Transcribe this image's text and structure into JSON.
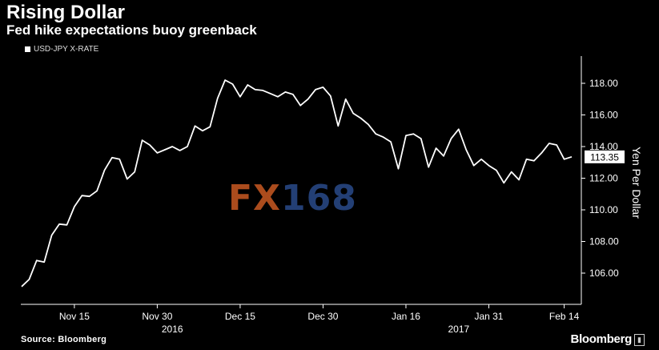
{
  "header": {
    "title": "Rising Dollar",
    "subtitle": "Fed hike expectations buoy greenback"
  },
  "legend": {
    "label": "USD-JPY X-RATE"
  },
  "footer": {
    "source": "Source: Bloomberg",
    "brand": "Bloomberg"
  },
  "watermark": {
    "part1": "FX",
    "part2": "168"
  },
  "colors": {
    "background": "#000000",
    "line": "#ffffff",
    "axis": "#ffffff"
  },
  "chart_data": {
    "type": "line",
    "ylabel": "Yen Per Dollar",
    "ylim": [
      105,
      119
    ],
    "yticks": [
      106,
      108,
      110,
      112,
      114,
      116,
      118
    ],
    "ytick_labels": [
      "106.00",
      "108.00",
      "110.00",
      "112.00",
      "114.00",
      "116.00",
      "118.00"
    ],
    "xticks": [
      {
        "label": "Nov 15",
        "idx": 7
      },
      {
        "label": "Nov 30",
        "idx": 18
      },
      {
        "label": "Dec 15",
        "idx": 29
      },
      {
        "label": "Dec 30",
        "idx": 40
      },
      {
        "label": "Jan 16",
        "idx": 51
      },
      {
        "label": "Jan 31",
        "idx": 62
      },
      {
        "label": "Feb 14",
        "idx": 72
      }
    ],
    "year_labels": [
      {
        "label": "2016",
        "idx": 20
      },
      {
        "label": "2017",
        "idx": 58
      }
    ],
    "last_value_label": "113.35",
    "series": [
      {
        "values": [
          105.15,
          105.6,
          106.8,
          106.7,
          108.4,
          109.1,
          109.05,
          110.2,
          110.9,
          110.85,
          111.2,
          112.5,
          113.3,
          113.2,
          111.95,
          112.4,
          114.4,
          114.1,
          113.6,
          113.8,
          114.0,
          113.75,
          114.0,
          115.3,
          115.0,
          115.25,
          117.05,
          118.2,
          117.95,
          117.15,
          117.9,
          117.6,
          117.55,
          117.35,
          117.15,
          117.45,
          117.3,
          116.6,
          117.0,
          117.6,
          117.75,
          117.2,
          115.3,
          117.0,
          116.1,
          115.8,
          115.4,
          114.8,
          114.6,
          114.3,
          112.6,
          114.7,
          114.8,
          114.5,
          112.7,
          113.9,
          113.4,
          114.5,
          115.1,
          113.8,
          112.8,
          113.2,
          112.8,
          112.5,
          111.7,
          112.4,
          111.9,
          113.2,
          113.1,
          113.6,
          114.2,
          114.1,
          113.2,
          113.35
        ]
      }
    ]
  }
}
